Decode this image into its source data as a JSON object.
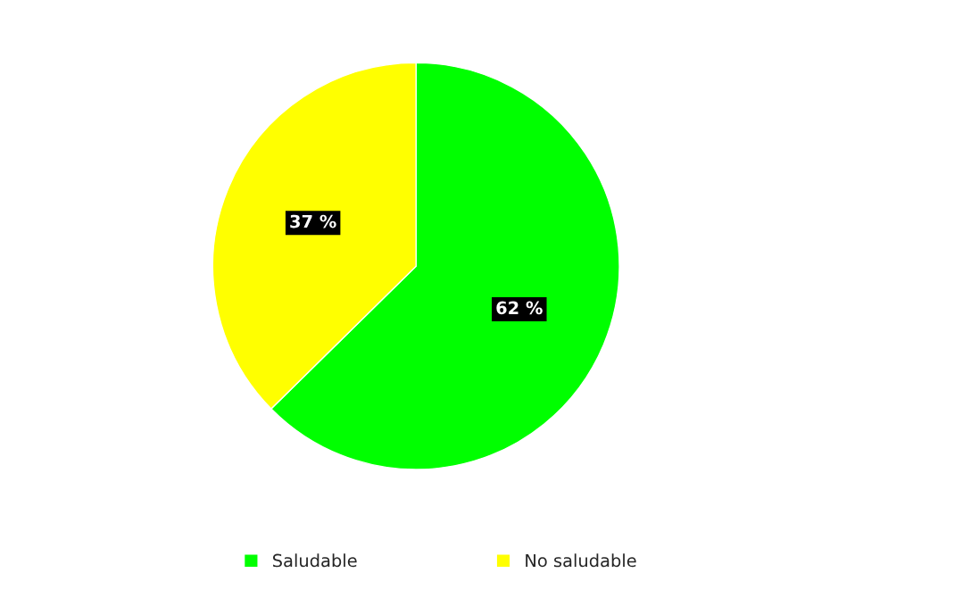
{
  "chart_data": {
    "type": "pie",
    "categories": [
      "Saludable",
      "No saludable"
    ],
    "values": [
      62,
      37
    ],
    "colors": [
      "#00ff00",
      "#ffff00"
    ],
    "value_labels": [
      "62 %",
      "37 %"
    ],
    "legend": "bottom"
  }
}
